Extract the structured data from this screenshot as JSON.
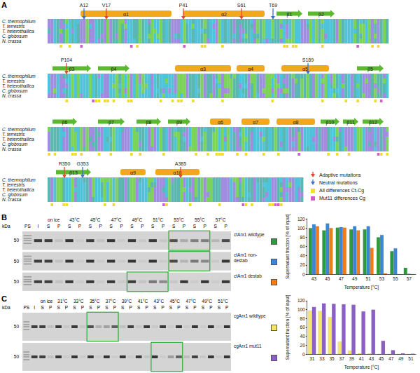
{
  "alignment": {
    "panel": "A",
    "species": [
      "C. thermophilum",
      "T. terrestris",
      "T. heterothallica",
      "C. globosum",
      "N. crassa"
    ],
    "blocks": [
      {
        "structure": [
          {
            "label": "α1",
            "type": "helix"
          },
          {
            "label": "α2",
            "type": "helix"
          },
          {
            "label": "β1",
            "type": "strand"
          },
          {
            "label": "β2",
            "type": "strand"
          }
        ],
        "mutations": [
          {
            "label": "A12",
            "kind": "neutral"
          },
          {
            "label": "V17",
            "kind": "adaptive"
          },
          {
            "label": "P41",
            "kind": "adaptive"
          },
          {
            "label": "S61",
            "kind": "adaptive"
          },
          {
            "label": "T69",
            "kind": "neutral"
          }
        ]
      },
      {
        "structure": [
          {
            "label": "β3",
            "type": "strand"
          },
          {
            "label": "β4",
            "type": "strand"
          },
          {
            "label": "α3",
            "type": "helix"
          },
          {
            "label": "α4",
            "type": "helix"
          },
          {
            "label": "α5",
            "type": "helix"
          },
          {
            "label": "β5",
            "type": "strand"
          }
        ],
        "mutations": [
          {
            "label": "P104",
            "kind": "adaptive"
          },
          {
            "label": "S189",
            "kind": "neutral"
          }
        ]
      },
      {
        "structure": [
          {
            "label": "β6",
            "type": "strand"
          },
          {
            "label": "β7",
            "type": "strand"
          },
          {
            "label": "β8",
            "type": "strand"
          },
          {
            "label": "β9",
            "type": "strand"
          },
          {
            "label": "α6",
            "type": "helix"
          },
          {
            "label": "α7",
            "type": "helix"
          },
          {
            "label": "α8",
            "type": "helix"
          },
          {
            "label": "β10",
            "type": "strand"
          },
          {
            "label": "β11",
            "type": "strand"
          },
          {
            "label": "β12",
            "type": "strand"
          }
        ],
        "mutations": []
      },
      {
        "structure": [
          {
            "label": "β13",
            "type": "strand"
          },
          {
            "label": "α9",
            "type": "helix"
          },
          {
            "label": "α10",
            "type": "helix"
          }
        ],
        "mutations": [
          {
            "label": "R350",
            "kind": "adaptive"
          },
          {
            "label": "G353",
            "kind": "neutral"
          },
          {
            "label": "A385",
            "kind": "adaptive"
          }
        ]
      }
    ],
    "legend": [
      {
        "label": "Adaptive mutations",
        "kind": "adaptive"
      },
      {
        "label": "Neutral mutations",
        "kind": "neutral"
      },
      {
        "label": "All differences Ct-Cg",
        "kind": "all_differences"
      },
      {
        "label": "Mut11 differences Cg",
        "kind": "mut11_differences"
      }
    ]
  },
  "gels": [
    {
      "panel": "B",
      "first_lanes": [
        "PS",
        "I"
      ],
      "lanes": [
        "on ice",
        "43°C",
        "45°C",
        "47°C",
        "49°C",
        "51°C",
        "53°C",
        "55°C",
        "57°C"
      ],
      "fractions": [
        "S",
        "P"
      ],
      "kda": "kDa",
      "marker": "50",
      "highlights": [
        [
          "53°C",
          "55°C"
        ],
        [
          "53°C",
          "55°C"
        ],
        [
          "49°C",
          "51°C"
        ]
      ]
    },
    {
      "panel": "C",
      "first_lanes": [
        "PS",
        "I"
      ],
      "lanes": [
        "on ice",
        "31°C",
        "33°C",
        "35°C",
        "37°C",
        "39°C",
        "41°C",
        "43°C",
        "45°C",
        "47°C",
        "49°C",
        "51°C"
      ],
      "fractions": [
        "S",
        "P"
      ],
      "kda": "kDa",
      "marker": "50",
      "highlights": [
        [
          "35°C",
          "37°C"
        ],
        [
          "43°C",
          "45°C"
        ]
      ]
    }
  ],
  "chart_data": [
    {
      "type": "bar",
      "categories": [
        "43",
        "45",
        "47",
        "49",
        "51",
        "53",
        "55",
        "57"
      ],
      "series": [
        {
          "name": "ctArx1 wildtype",
          "color": "#2e9a3e",
          "values": [
            100,
            95,
            101,
            97,
            97,
            80,
            50,
            14
          ]
        },
        {
          "name": "ctArx1 non-destab",
          "color": "#3d85d6",
          "values": [
            108,
            110,
            102,
            104,
            104,
            85,
            56,
            1
          ]
        },
        {
          "name": "ctArx1 destab",
          "color": "#f07d1a",
          "values": [
            104,
            100,
            101,
            95,
            57,
            2,
            0,
            0
          ]
        }
      ],
      "xlabel": "Temperature [°C]",
      "ylabel": "Supernatant fraction [% of input]",
      "ylim": [
        0,
        120
      ],
      "yticks": [
        0,
        20,
        40,
        60,
        80,
        100,
        120
      ],
      "grid": false
    },
    {
      "type": "bar",
      "categories": [
        "31",
        "33",
        "35",
        "37",
        "39",
        "41",
        "43",
        "45",
        "47",
        "49",
        "51"
      ],
      "series": [
        {
          "name": "cgArx1 wildtype",
          "color": "#f5e56b",
          "values": [
            98,
            97,
            83,
            28,
            8,
            2,
            1,
            0,
            0,
            0,
            0
          ]
        },
        {
          "name": "cgArx1 mut11",
          "color": "#8c5fc7",
          "values": [
            106,
            114,
            113,
            112,
            111,
            96,
            100,
            30,
            9,
            2,
            1
          ]
        }
      ],
      "xlabel": "Temperature [°C]",
      "ylabel": "Supernatant fraction [% of input]",
      "ylim": [
        0,
        120
      ],
      "yticks": [
        0,
        20,
        40,
        60,
        80,
        100,
        120
      ],
      "grid": false
    }
  ]
}
